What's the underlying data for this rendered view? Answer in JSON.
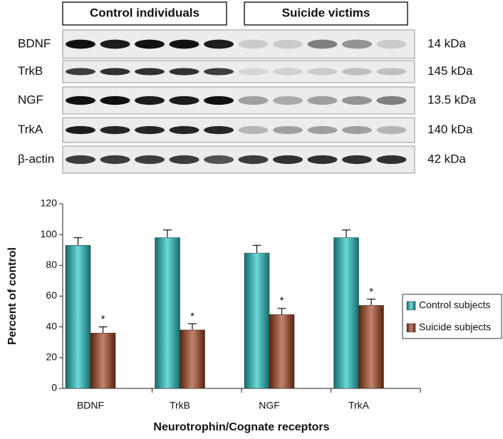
{
  "blot": {
    "groups": [
      "Control individuals",
      "Suicide victims"
    ],
    "rows": [
      {
        "label": "BDNF",
        "size": "14 kDa"
      },
      {
        "label": "TrkB",
        "size": "145 kDa"
      },
      {
        "label": "NGF",
        "size": "13.5 kDa"
      },
      {
        "label": "TrkA",
        "size": "140 kDa"
      },
      {
        "label": "β-actin",
        "size": "42 kDa"
      }
    ]
  },
  "chart_data": {
    "type": "bar",
    "categories": [
      "BDNF",
      "TrkB",
      "NGF",
      "TrkA"
    ],
    "series": [
      {
        "name": "Control subjects",
        "color": "#1fc4c4",
        "values": [
          93,
          98,
          88,
          98
        ],
        "errors": [
          5,
          5,
          5,
          5
        ]
      },
      {
        "name": "Suicide subjects",
        "color": "#a3401a",
        "values": [
          36,
          38,
          48,
          54
        ],
        "errors": [
          4,
          4,
          4,
          4
        ],
        "significance": [
          "*",
          "*",
          "*",
          "*"
        ]
      }
    ],
    "ylabel": "Percent of control",
    "xlabel": "Neurotrophin/Cognate receptors",
    "ylim": [
      0,
      120
    ],
    "yticks": [
      0,
      20,
      40,
      60,
      80,
      100,
      120
    ],
    "legend": "right"
  }
}
